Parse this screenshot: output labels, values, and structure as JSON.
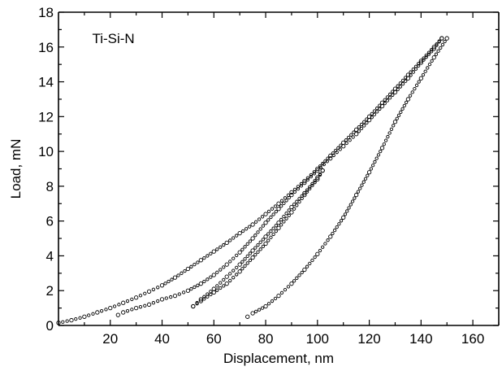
{
  "chart_data": {
    "type": "scatter",
    "title": "",
    "xlabel": "Displacement, nm",
    "ylabel": "Load, mN",
    "xlim": [
      0,
      170
    ],
    "ylim": [
      0,
      18
    ],
    "xticks": [
      20,
      40,
      60,
      80,
      100,
      120,
      140,
      160
    ],
    "yticks": [
      0,
      2,
      4,
      6,
      8,
      10,
      12,
      14,
      16,
      18
    ],
    "grid": false,
    "marker": "open-circle",
    "marker_color": "#000000",
    "annotations": [
      {
        "text": "Ti-Si-N",
        "x": 13,
        "y": 16.5
      }
    ],
    "series": [
      {
        "x": [
          0,
          5,
          10,
          15,
          20,
          25,
          30,
          35,
          40,
          45,
          50,
          55,
          60,
          65,
          70,
          75,
          80,
          85,
          90,
          95,
          100,
          105,
          110,
          115,
          120,
          125,
          130,
          135,
          140,
          145,
          148
        ],
        "y": [
          0.15,
          0.3,
          0.5,
          0.75,
          1.0,
          1.3,
          1.6,
          1.95,
          2.3,
          2.75,
          3.25,
          3.75,
          4.25,
          4.75,
          5.3,
          5.8,
          6.4,
          7.0,
          7.65,
          8.3,
          9.0,
          9.75,
          10.5,
          11.25,
          12.0,
          12.8,
          13.6,
          14.4,
          15.2,
          16.0,
          16.5
        ]
      },
      {
        "x": [
          148,
          145,
          140,
          135,
          130,
          125,
          120,
          115,
          110,
          105,
          100,
          95,
          90,
          85,
          80,
          75,
          70,
          65,
          60,
          55,
          50,
          45,
          40,
          35,
          30,
          25,
          23
        ],
        "y": [
          16.5,
          15.9,
          15.1,
          14.2,
          13.4,
          12.6,
          11.8,
          11.0,
          10.3,
          9.6,
          8.9,
          8.2,
          7.5,
          6.7,
          5.9,
          5.0,
          4.2,
          3.5,
          2.9,
          2.4,
          2.0,
          1.7,
          1.5,
          1.2,
          1.0,
          0.75,
          0.6
        ]
      },
      {
        "x": [
          52,
          55,
          60,
          65,
          70,
          75,
          80,
          85,
          90,
          95,
          100,
          102
        ],
        "y": [
          1.1,
          1.5,
          2.1,
          2.8,
          3.5,
          4.3,
          5.1,
          5.9,
          6.8,
          7.6,
          8.5,
          8.9
        ]
      },
      {
        "x": [
          102,
          100,
          95,
          90,
          85,
          80,
          75,
          70,
          65,
          60,
          55,
          52
        ],
        "y": [
          8.9,
          8.4,
          7.5,
          6.5,
          5.6,
          4.7,
          3.9,
          3.1,
          2.4,
          1.9,
          1.4,
          1.1
        ]
      },
      {
        "x": [
          73,
          75,
          80,
          85,
          90,
          95,
          100,
          105,
          110,
          115,
          120,
          125,
          130,
          135,
          140,
          145,
          150
        ],
        "y": [
          0.5,
          0.7,
          1.1,
          1.7,
          2.4,
          3.2,
          4.1,
          5.1,
          6.2,
          7.5,
          8.8,
          10.2,
          11.7,
          13.0,
          14.2,
          15.4,
          16.5
        ]
      }
    ]
  }
}
